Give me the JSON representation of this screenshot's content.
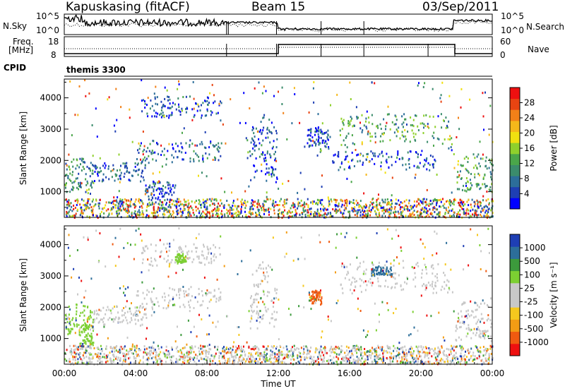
{
  "header": {
    "title": "Kapuskasing (fitACF)",
    "beam": "Beam 15",
    "date": "03/Sep/2011"
  },
  "top_panel": {
    "left_label": "N.Sky",
    "left_ticks": [
      "10^5",
      "10^0"
    ],
    "right_ticks": [
      "10^5",
      "10^0"
    ],
    "right_label": "N.Search"
  },
  "freq_panel": {
    "left_label_1": "Freq.",
    "left_label_2": "[MHz]",
    "left_ticks": [
      "18",
      "8"
    ],
    "right_ticks": [
      "60",
      "0"
    ],
    "right_label": "Nave"
  },
  "cpid": {
    "label": "CPID",
    "value": "themis 3300"
  },
  "colors": {
    "power_scale": [
      "#0000ff",
      "#1e3fb4",
      "#2c6e9a",
      "#3b8c6c",
      "#4aa64a",
      "#8fd02c",
      "#f0e010",
      "#f5b81a",
      "#f28018",
      "#e84412",
      "#ee1010"
    ],
    "velocity_scale": [
      "#ee1010",
      "#f05a10",
      "#f39c14",
      "#f5c81e",
      "#c8c8c8",
      "#c8c8c8",
      "#7ccf32",
      "#3c9a3c",
      "#2c6e9a",
      "#1e3fb4"
    ]
  },
  "chart_data": [
    {
      "type": "heatmap",
      "name": "power",
      "ylabel": "Slant Range [km]",
      "xlabel": "",
      "x_ticks": [
        "00:00",
        "04:00",
        "08:00",
        "12:00",
        "16:00",
        "20:00",
        "00:00"
      ],
      "xlim_hours": [
        0,
        24
      ],
      "y_ticks": [
        1000,
        2000,
        3000,
        4000
      ],
      "ylim": [
        180,
        4600
      ],
      "colorbar_label": "Power [dB]",
      "colorbar_ticks": [
        "4",
        "8",
        "12",
        "16",
        "20",
        "24",
        "28"
      ],
      "colorbar_range": [
        0,
        30
      ],
      "echo_regions": [
        {
          "t": [
            0.0,
            1.6
          ],
          "r": [
            900,
            2000
          ],
          "level": 10
        },
        {
          "t": [
            1.6,
            4.6
          ],
          "r": [
            1300,
            1900
          ],
          "level": 6
        },
        {
          "t": [
            4.0,
            8.8
          ],
          "r": [
            1900,
            2600
          ],
          "level": 7
        },
        {
          "t": [
            4.3,
            8.8
          ],
          "r": [
            3300,
            4000
          ],
          "level": 5
        },
        {
          "t": [
            4.5,
            6.2
          ],
          "r": [
            700,
            1300
          ],
          "level": 5
        },
        {
          "t": [
            10.4,
            11.9
          ],
          "r": [
            1300,
            3200
          ],
          "level": 5
        },
        {
          "t": [
            13.6,
            14.8
          ],
          "r": [
            2400,
            3000
          ],
          "level": 5
        },
        {
          "t": [
            15.4,
            21.7
          ],
          "r": [
            2400,
            3400
          ],
          "level": 11
        },
        {
          "t": [
            15.0,
            20.8
          ],
          "r": [
            1700,
            2300
          ],
          "level": 5
        },
        {
          "t": [
            21.9,
            24.0
          ],
          "r": [
            900,
            2100
          ],
          "level": 12
        },
        {
          "t": [
            0.0,
            24.0
          ],
          "r": [
            200,
            800
          ],
          "level": 9
        }
      ]
    },
    {
      "type": "heatmap",
      "name": "velocity",
      "ylabel": "Slant Range [km]",
      "xlabel": "Time UT",
      "x_ticks": [
        "00:00",
        "04:00",
        "08:00",
        "12:00",
        "16:00",
        "20:00",
        "00:00"
      ],
      "xlim_hours": [
        0,
        24
      ],
      "y_ticks": [
        1000,
        2000,
        3000,
        4000
      ],
      "ylim": [
        180,
        4600
      ],
      "colorbar_label": "Velocity [m s⁻¹]",
      "colorbar_ticks": [
        "1000",
        "500",
        "100",
        "25",
        "-25",
        "-100",
        "-500",
        "-1000"
      ],
      "echo_regions": [
        {
          "t": [
            0.0,
            1.6
          ],
          "r": [
            1100,
            2000
          ],
          "level": 25
        },
        {
          "t": [
            0.8,
            1.6
          ],
          "r": [
            700,
            1400
          ],
          "level": 100
        },
        {
          "t": [
            1.6,
            4.6
          ],
          "r": [
            1400,
            2000
          ],
          "level": 0
        },
        {
          "t": [
            4.0,
            8.8
          ],
          "r": [
            1900,
            2600
          ],
          "level": 0
        },
        {
          "t": [
            4.3,
            8.8
          ],
          "r": [
            3300,
            4000
          ],
          "level": 0
        },
        {
          "t": [
            6.2,
            6.8
          ],
          "r": [
            3400,
            3700
          ],
          "level": 100
        },
        {
          "t": [
            10.4,
            11.9
          ],
          "r": [
            1300,
            3200
          ],
          "level": 0
        },
        {
          "t": [
            13.7,
            14.4
          ],
          "r": [
            2100,
            2500
          ],
          "level": -500
        },
        {
          "t": [
            15.4,
            21.7
          ],
          "r": [
            2400,
            3400
          ],
          "level": 0
        },
        {
          "t": [
            17.2,
            18.4
          ],
          "r": [
            3000,
            3300
          ],
          "level": 500
        },
        {
          "t": [
            21.9,
            24.0
          ],
          "r": [
            900,
            2100
          ],
          "level": 0
        },
        {
          "t": [
            0.0,
            24.0
          ],
          "r": [
            200,
            800
          ],
          "level": 0
        }
      ]
    }
  ]
}
